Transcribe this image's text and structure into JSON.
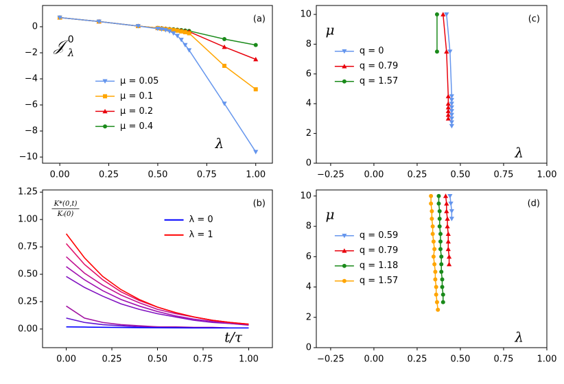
{
  "chart_data": [
    {
      "type": "line",
      "label": "(a)",
      "ylabel": {
        "symbol": "𝒥",
        "sup": "0",
        "sub": "λ"
      },
      "xlabel": "λ",
      "legend": "center",
      "x": [
        0,
        0.2,
        0.4,
        0.5,
        0.52,
        0.54,
        0.56,
        0.58,
        0.6,
        0.62,
        0.64,
        0.66,
        0.84,
        1.0
      ],
      "xlim": [
        -0.088,
        1.085
      ],
      "ylim": [
        -10.47,
        1.63
      ],
      "xticks": [
        {
          "value": 0,
          "label": "0.00"
        },
        {
          "value": 0.25,
          "label": "0.25"
        },
        {
          "value": 0.5,
          "label": "0.50"
        },
        {
          "value": 0.75,
          "label": "0.75"
        },
        {
          "value": 1,
          "label": "1.00"
        }
      ],
      "yticks": [
        0,
        {
          "value": -2,
          "label": "−2"
        },
        {
          "value": -4,
          "label": "−4"
        },
        {
          "value": -6,
          "label": "−6"
        },
        {
          "value": -8,
          "label": "−8"
        },
        {
          "value": -10,
          "label": "−10"
        }
      ],
      "series": [
        {
          "name": "μ = 0.05",
          "color": "#6495ed",
          "marker": "v",
          "values": [
            0.7,
            0.4,
            0.05,
            -0.15,
            -0.2,
            -0.25,
            -0.35,
            -0.5,
            -0.7,
            -1.0,
            -1.4,
            -1.8,
            -5.9,
            -9.6
          ]
        },
        {
          "name": "μ = 0.1",
          "color": "#ffa500",
          "marker": "s",
          "values": [
            0.7,
            0.4,
            0.05,
            -0.1,
            -0.15,
            -0.18,
            -0.22,
            -0.26,
            -0.3,
            -0.36,
            -0.42,
            -0.5,
            -3.0,
            -4.8
          ]
        },
        {
          "name": "μ = 0.2",
          "color": "#e8000b",
          "marker": "^",
          "values": [
            0.7,
            0.4,
            0.05,
            -0.1,
            -0.13,
            -0.16,
            -0.2,
            -0.23,
            -0.26,
            -0.3,
            -0.34,
            -0.38,
            -1.55,
            -2.5
          ]
        },
        {
          "name": "μ = 0.4",
          "color": "#1a8a1a",
          "marker": "o",
          "values": [
            0.7,
            0.4,
            0.05,
            -0.1,
            -0.12,
            -0.15,
            -0.18,
            -0.2,
            -0.23,
            -0.26,
            -0.29,
            -0.32,
            -0.95,
            -1.4
          ]
        }
      ]
    },
    {
      "type": "line",
      "label": "(b)",
      "ylabel": {
        "numerator": "K*(0,t)",
        "denominator": "Kᵢ(0)"
      },
      "xlabel": "t/τ",
      "legend": "upper right",
      "x": [
        0,
        0.1,
        0.2,
        0.3,
        0.4,
        0.5,
        0.6,
        0.7,
        0.8,
        0.9,
        1.0
      ],
      "xlim": [
        -0.13,
        1.13
      ],
      "ylim": [
        -0.17,
        1.27
      ],
      "xticks": [
        {
          "value": 0,
          "label": "0.00"
        },
        {
          "value": 0.25,
          "label": "0.25"
        },
        {
          "value": 0.5,
          "label": "0.50"
        },
        {
          "value": 0.75,
          "label": "0.75"
        },
        {
          "value": 1,
          "label": "1.00"
        }
      ],
      "yticks": [
        {
          "value": 0,
          "label": "0.00"
        },
        {
          "value": 0.25,
          "label": "0.25"
        },
        {
          "value": 0.5,
          "label": "0.50"
        },
        {
          "value": 0.75,
          "label": "0.75"
        },
        {
          "value": 1,
          "label": "1.00"
        },
        {
          "value": 1.25,
          "label": "1.25"
        }
      ],
      "series": [
        {
          "name": "λ = 0",
          "color": "#0000ff",
          "values": [
            0.02,
            0.018,
            0.016,
            0.014,
            0.013,
            0.012,
            0.011,
            0.01,
            0.01,
            0.01,
            0.01
          ]
        },
        {
          "name": "λ = 1",
          "color": "#ff0000",
          "values": [
            0.87,
            0.65,
            0.48,
            0.36,
            0.27,
            0.2,
            0.15,
            0.11,
            0.08,
            0.06,
            0.045
          ]
        },
        {
          "color": "#e0106a",
          "values": [
            0.78,
            0.59,
            0.45,
            0.34,
            0.26,
            0.2,
            0.15,
            0.11,
            0.08,
            0.06,
            0.045
          ]
        },
        {
          "color": "#c01090",
          "values": [
            0.66,
            0.51,
            0.4,
            0.31,
            0.24,
            0.18,
            0.14,
            0.11,
            0.08,
            0.06,
            0.04
          ]
        },
        {
          "color": "#a010b0",
          "values": [
            0.57,
            0.45,
            0.35,
            0.27,
            0.21,
            0.16,
            0.12,
            0.09,
            0.07,
            0.05,
            0.04
          ]
        },
        {
          "color": "#8010c0",
          "values": [
            0.48,
            0.38,
            0.3,
            0.23,
            0.18,
            0.14,
            0.11,
            0.08,
            0.06,
            0.05,
            0.035
          ]
        },
        {
          "color": "#a010a0",
          "values": [
            0.21,
            0.1,
            0.06,
            0.04,
            0.03,
            0.02,
            0.02,
            0.015,
            0.015,
            0.01,
            0.01
          ]
        },
        {
          "color": "#6010d0",
          "values": [
            0.1,
            0.06,
            0.04,
            0.03,
            0.02,
            0.02,
            0.015,
            0.01,
            0.01,
            0.01,
            0.01
          ]
        }
      ]
    },
    {
      "type": "line",
      "label": "(c)",
      "ylabel": "μ",
      "xlabel": "λ",
      "legend": "upper left",
      "xlim": [
        -0.333,
        1.0
      ],
      "ylim": [
        0,
        10.6
      ],
      "xticks": [
        {
          "value": -0.25,
          "label": "−0.25"
        },
        {
          "value": 0,
          "label": "0.00"
        },
        {
          "value": 0.25,
          "label": "0.25"
        },
        {
          "value": 0.5,
          "label": "0.50"
        },
        {
          "value": 0.75,
          "label": "0.75"
        },
        {
          "value": 1,
          "label": "1.00"
        }
      ],
      "yticks": [
        0,
        2,
        4,
        6,
        8,
        10
      ],
      "series": [
        {
          "name": "q = 0",
          "color": "#6495ed",
          "marker": "v",
          "x": [
            0.42,
            0.44,
            0.45,
            0.45,
            0.45,
            0.45,
            0.45,
            0.45,
            0.45,
            0.45,
            0.45
          ],
          "values": [
            10,
            7.5,
            4.5,
            4.25,
            4,
            3.75,
            3.5,
            3.25,
            3,
            2.75,
            2.5
          ]
        },
        {
          "name": "q = 0.79",
          "color": "#e8000b",
          "marker": "^",
          "x": [
            0.4,
            0.42,
            0.43,
            0.43,
            0.43,
            0.43,
            0.43,
            0.43
          ],
          "values": [
            10,
            7.5,
            4.5,
            4,
            3.75,
            3.5,
            3.25,
            3
          ]
        },
        {
          "name": "q = 1.57",
          "color": "#1a8a1a",
          "marker": "o",
          "x": [
            0.365,
            0.365
          ],
          "values": [
            10,
            7.5
          ]
        }
      ]
    },
    {
      "type": "line",
      "label": "(d)",
      "ylabel": "μ",
      "xlabel": "λ",
      "legend": "upper left",
      "xlim": [
        -0.333,
        1.0
      ],
      "ylim": [
        0,
        10.4
      ],
      "xticks": [
        {
          "value": -0.25,
          "label": "−0.25"
        },
        {
          "value": 0,
          "label": "0.00"
        },
        {
          "value": 0.25,
          "label": "0.25"
        },
        {
          "value": 0.5,
          "label": "0.50"
        },
        {
          "value": 0.75,
          "label": "0.75"
        },
        {
          "value": 1,
          "label": "1.00"
        }
      ],
      "yticks": [
        0,
        2,
        4,
        6,
        8,
        10
      ],
      "series": [
        {
          "name": "q = 0.59",
          "color": "#6495ed",
          "marker": "v",
          "x": [
            0.44,
            0.445,
            0.45,
            0.45
          ],
          "values": [
            10,
            9.5,
            9,
            8.5
          ]
        },
        {
          "name": "q = 0.79",
          "color": "#e8000b",
          "marker": "^",
          "x": [
            0.415,
            0.42,
            0.42,
            0.425,
            0.425,
            0.43,
            0.43,
            0.43,
            0.435,
            0.435
          ],
          "values": [
            10,
            9.5,
            9,
            8.5,
            8,
            7.5,
            7,
            6.5,
            6,
            5.5
          ]
        },
        {
          "name": "q = 1.18",
          "color": "#1a8a1a",
          "marker": "o",
          "x": [
            0.375,
            0.375,
            0.38,
            0.38,
            0.38,
            0.385,
            0.385,
            0.385,
            0.39,
            0.39,
            0.39,
            0.395,
            0.395,
            0.4,
            0.4
          ],
          "values": [
            10,
            9.5,
            9,
            8.5,
            8,
            7.5,
            7,
            6.5,
            6,
            5.5,
            5,
            4.5,
            4,
            3.5,
            3
          ]
        },
        {
          "name": "q = 1.57",
          "color": "#ffa500",
          "marker": "o",
          "x": [
            0.33,
            0.33,
            0.335,
            0.335,
            0.34,
            0.34,
            0.345,
            0.35,
            0.345,
            0.35,
            0.355,
            0.355,
            0.36,
            0.36,
            0.365,
            0.37
          ],
          "values": [
            10,
            9.5,
            9,
            8.5,
            8,
            7.5,
            7,
            6.5,
            6,
            5.5,
            5,
            4.5,
            4,
            3.5,
            3,
            2.5
          ]
        }
      ]
    }
  ]
}
